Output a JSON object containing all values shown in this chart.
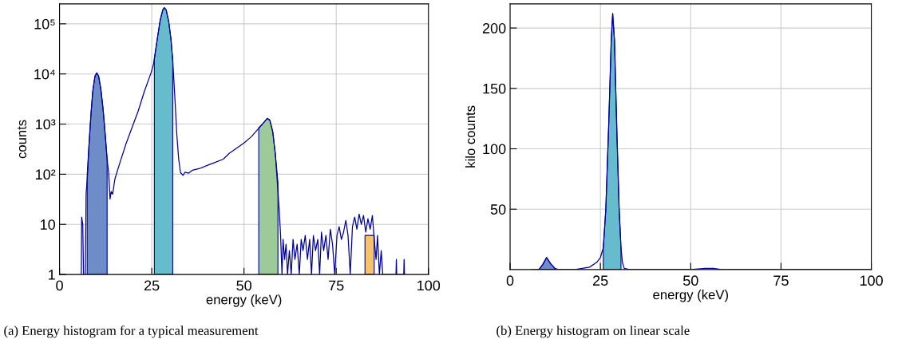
{
  "chart_data": [
    {
      "type": "line",
      "title": "(a) Energy histogram for a typical measurement",
      "xlabel": "energy (keV)",
      "ylabel": "counts",
      "log": "y",
      "grid": true,
      "xlim": [
        0,
        100
      ],
      "xticks": [
        0,
        25,
        50,
        75,
        100
      ],
      "ylim": [
        1,
        250000
      ],
      "yticks": [
        1,
        10,
        {
          "value": 100,
          "label": "10²"
        },
        {
          "value": 1000,
          "label": "10³"
        },
        {
          "value": 10000,
          "label": "10⁴"
        },
        {
          "value": 100000,
          "label": "10⁵"
        }
      ],
      "series": [
        {
          "type": "area",
          "color": "#6d8cc8",
          "x": [
            7.5,
            8,
            8.5,
            9,
            9.6,
            10.1,
            10.6,
            11.2,
            11.8,
            12.4,
            12.9
          ],
          "values": [
            100,
            400,
            1500,
            4500,
            9000,
            10500,
            9000,
            5000,
            2000,
            600,
            200
          ]
        },
        {
          "type": "area",
          "color": "#66bccd",
          "x": [
            25.7,
            26.5,
            27.3,
            28.0,
            28.4,
            28.9,
            29.6,
            30.2,
            30.7
          ],
          "values": [
            20000,
            50000,
            120000,
            190000,
            210000,
            190000,
            110000,
            50000,
            18000
          ]
        },
        {
          "type": "area",
          "color": "#9ccb99",
          "x": [
            54,
            55,
            56.3,
            57,
            57.8,
            58.5,
            59.2
          ],
          "values": [
            850,
            1000,
            1300,
            1200,
            700,
            250,
            70
          ]
        },
        {
          "type": "area",
          "color": "#f5c36e",
          "x": [
            82.8,
            83.6,
            84.2,
            84.8,
            85.3
          ],
          "values": [
            6,
            6,
            6,
            6,
            6
          ]
        },
        {
          "color": "#000099",
          "x": [
            5.9,
            6.0,
            6.3,
            6.5,
            7.0,
            7.2,
            7.6,
            8.0,
            8.5,
            9.0,
            9.6,
            10.1,
            10.6,
            11.2,
            11.8,
            12.4,
            12.9,
            13.3,
            13.7,
            14.0,
            14.4,
            15.0,
            16.2,
            18,
            20,
            21.3,
            23,
            24.9,
            25.5,
            26.5,
            27.3,
            28.0,
            28.4,
            28.9,
            29.6,
            30.2,
            30.7,
            31.3,
            31.8,
            32.3,
            32.8,
            33.5,
            34,
            35,
            36,
            38,
            40,
            42,
            44.4,
            46,
            48,
            50,
            52,
            53.7,
            55,
            56.3,
            57.0,
            57.8,
            58.5,
            58.8,
            59.5,
            59.9,
            60.3,
            60.6,
            61,
            61.4,
            61.8,
            62.3,
            62.8,
            63.3,
            63.8,
            64.4,
            65,
            65.5,
            66,
            66.6,
            67.2,
            67.8,
            68.3,
            68.8,
            69.4,
            70,
            70.5,
            71,
            71.6,
            72.2,
            72.8,
            73.4,
            74,
            74.6,
            75.2,
            75.8,
            76.4,
            77,
            77.6,
            78.2,
            78.8,
            79.4,
            80,
            80.6,
            81.2,
            81.8,
            82.4,
            83,
            83.6,
            84.2,
            84.8,
            85.3,
            85.8,
            86.2,
            86.7,
            87.2,
            87.6,
            91.2,
            91.3,
            91.4,
            93.3,
            93.4,
            93.5
          ],
          "values": [
            1,
            14,
            10,
            1,
            1,
            40,
            100,
            400,
            1500,
            4500,
            9000,
            10500,
            9000,
            5000,
            2000,
            600,
            200,
            110,
            32,
            45,
            40,
            80,
            155,
            400,
            1000,
            1800,
            4500,
            11000,
            16000,
            50000,
            120000,
            190000,
            210000,
            190000,
            110000,
            50000,
            18000,
            3000,
            600,
            200,
            107,
            95,
            110,
            105,
            120,
            130,
            150,
            170,
            200,
            260,
            330,
            420,
            560,
            780,
            1000,
            1300,
            1200,
            700,
            250,
            123,
            22,
            6.5,
            1,
            5,
            2,
            4,
            1,
            3,
            1,
            5,
            2,
            4,
            1,
            5,
            3,
            6,
            2,
            5,
            1,
            6,
            3,
            5,
            1,
            7,
            3,
            6,
            2,
            8,
            4,
            1,
            6,
            9,
            5,
            7,
            12,
            6,
            1,
            9,
            14,
            8,
            16,
            10,
            15,
            7,
            13,
            8,
            15,
            5,
            2,
            6,
            1,
            3,
            1,
            1,
            2,
            1,
            1,
            2,
            1
          ]
        }
      ]
    },
    {
      "type": "line",
      "title": "(b) Energy histogram on linear scale",
      "xlabel": "energy (keV)",
      "ylabel": "kilo counts",
      "grid": true,
      "xlim": [
        0,
        100
      ],
      "xticks": [
        0,
        25,
        50,
        75,
        100
      ],
      "ylim": [
        0,
        220
      ],
      "yticks": [
        50,
        100,
        150,
        200
      ],
      "series": [
        {
          "type": "area",
          "color": "#6d8cc8",
          "x": [
            7.5,
            8,
            9,
            10.1,
            11.2,
            12.4,
            12.9
          ],
          "values": [
            0,
            0,
            4,
            10,
            5,
            1,
            0
          ]
        },
        {
          "type": "area",
          "color": "#66bccd",
          "x": [
            25.8,
            26.5,
            27.3,
            28.0,
            28.4,
            28.9,
            29.6,
            30.2,
            30.7
          ],
          "values": [
            18,
            50,
            120,
            190,
            212,
            190,
            110,
            50,
            18
          ]
        },
        {
          "color": "#000099",
          "x": [
            5.9,
            7,
            8,
            9,
            10.1,
            11.2,
            12.4,
            13.3,
            16,
            18,
            20,
            22,
            24,
            25,
            25.8,
            26.5,
            27.3,
            28.0,
            28.4,
            28.9,
            29.6,
            30.2,
            30.7,
            31.1,
            31.6,
            33,
            40,
            50,
            54,
            56.3,
            58.5,
            60,
            88,
            100
          ],
          "values": [
            0,
            0,
            0,
            4,
            10,
            5,
            1,
            0,
            0,
            0,
            1,
            2,
            6,
            10,
            18,
            50,
            120,
            190,
            212,
            190,
            110,
            50,
            18,
            6,
            1,
            0,
            0,
            0,
            1,
            1,
            0,
            0,
            0,
            0
          ]
        }
      ]
    }
  ]
}
